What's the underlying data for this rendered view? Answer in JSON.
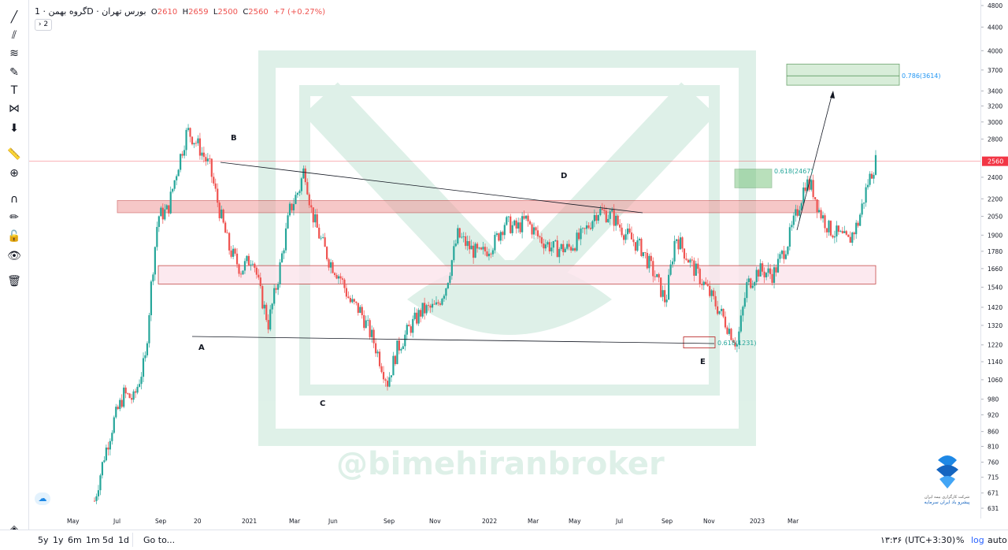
{
  "legend": {
    "symbol": "گروه بهمن · 1D · بورس تهران",
    "open_label": "O",
    "open": "2610",
    "high_label": "H",
    "high": "2659",
    "low_label": "L",
    "low": "2500",
    "close_label": "C",
    "close": "2560",
    "change": "+7 (+0.27%)",
    "collapse_label": "2"
  },
  "toolbar": {
    "tools": [
      "crosshair-icon",
      "trendline-icon",
      "fib-icon",
      "brush-icon",
      "text-icon",
      "pattern-icon",
      "prediction-icon",
      "arrow-down-icon",
      "ruler-icon",
      "zoom-in-icon",
      "magnet-icon",
      "lock-draw-icon",
      "unlock-icon",
      "eye-icon",
      "trash-icon",
      "layers-icon"
    ]
  },
  "bottom_bar": {
    "ranges": [
      "5y",
      "1y",
      "6m",
      "1m",
      "5d",
      "1d"
    ],
    "goto": "Go to...",
    "clock": "۱۳:۳۶ (UTC+3:30)",
    "percent": "%",
    "log": "log",
    "auto": "auto"
  },
  "watermark": "@bimehiranbroker",
  "broker_logo_text": [
    "شرکت کارگزاری بیمه ایران",
    "پیشرو باد ایران سرمایه"
  ],
  "colors": {
    "up": "#26a69a",
    "down": "#ef5350",
    "resistance": "#e57373",
    "support_zone": "#66bb6a",
    "price_line": "#f23645",
    "fib_label": "#2196f3"
  },
  "chart_data": {
    "type": "candlestick",
    "yscale": "log",
    "ylim": [
      631,
      4800
    ],
    "y_ticks": [
      4800,
      4400,
      4000,
      3700,
      3400,
      3200,
      3000,
      2800,
      2560,
      2400,
      2200,
      2050,
      1900,
      1780,
      1660,
      1540,
      1420,
      1320,
      1220,
      1140,
      1060,
      980,
      920,
      860,
      810,
      760,
      715,
      671,
      631
    ],
    "x_ticks": [
      "May",
      "Jul",
      "Sep",
      "20",
      "2021",
      "Mar",
      "Jun",
      "Sep",
      "Nov",
      "2022",
      "Mar",
      "May",
      "Jul",
      "Sep",
      "Nov",
      "2023",
      "Mar"
    ],
    "last_price": "2560",
    "wave_labels": [
      "A",
      "B",
      "C",
      "D",
      "E"
    ],
    "fib_labels": [
      "0.618(2467)",
      "0.618(1231)",
      "0.786(3614)"
    ],
    "path_points": [
      {
        "d": 0,
        "p": 650
      },
      {
        "d": 10,
        "p": 780
      },
      {
        "d": 20,
        "p": 900
      },
      {
        "d": 30,
        "p": 1000
      },
      {
        "d": 40,
        "p": 980
      },
      {
        "d": 52,
        "p": 1150
      },
      {
        "d": 58,
        "p": 1550
      },
      {
        "d": 65,
        "p": 2050
      },
      {
        "d": 75,
        "p": 2100
      },
      {
        "d": 85,
        "p": 2500
      },
      {
        "d": 95,
        "p": 2900
      },
      {
        "d": 105,
        "p": 2750
      },
      {
        "d": 118,
        "p": 2500
      },
      {
        "d": 128,
        "p": 2100
      },
      {
        "d": 138,
        "p": 1800
      },
      {
        "d": 150,
        "p": 1650
      },
      {
        "d": 162,
        "p": 1750
      },
      {
        "d": 170,
        "p": 1500
      },
      {
        "d": 178,
        "p": 1330
      },
      {
        "d": 188,
        "p": 1600
      },
      {
        "d": 200,
        "p": 2100
      },
      {
        "d": 210,
        "p": 2300
      },
      {
        "d": 215,
        "p": 2500
      },
      {
        "d": 222,
        "p": 2100
      },
      {
        "d": 230,
        "p": 1900
      },
      {
        "d": 240,
        "p": 1720
      },
      {
        "d": 252,
        "p": 1600
      },
      {
        "d": 262,
        "p": 1450
      },
      {
        "d": 272,
        "p": 1400
      },
      {
        "d": 285,
        "p": 1250
      },
      {
        "d": 300,
        "p": 1050
      },
      {
        "d": 310,
        "p": 1200
      },
      {
        "d": 322,
        "p": 1300
      },
      {
        "d": 335,
        "p": 1400
      },
      {
        "d": 350,
        "p": 1420
      },
      {
        "d": 360,
        "p": 1550
      },
      {
        "d": 372,
        "p": 1900
      },
      {
        "d": 385,
        "p": 1800
      },
      {
        "d": 395,
        "p": 1750
      },
      {
        "d": 410,
        "p": 1850
      },
      {
        "d": 420,
        "p": 2000
      },
      {
        "d": 432,
        "p": 1950
      },
      {
        "d": 442,
        "p": 2020
      },
      {
        "d": 455,
        "p": 1880
      },
      {
        "d": 470,
        "p": 1800
      },
      {
        "d": 485,
        "p": 1800
      },
      {
        "d": 500,
        "p": 1900
      },
      {
        "d": 515,
        "p": 2100
      },
      {
        "d": 530,
        "p": 2050
      },
      {
        "d": 545,
        "p": 1900
      },
      {
        "d": 560,
        "p": 1800
      },
      {
        "d": 575,
        "p": 1600
      },
      {
        "d": 585,
        "p": 1450
      },
      {
        "d": 595,
        "p": 1900
      },
      {
        "d": 610,
        "p": 1700
      },
      {
        "d": 625,
        "p": 1550
      },
      {
        "d": 640,
        "p": 1400
      },
      {
        "d": 650,
        "p": 1300
      },
      {
        "d": 658,
        "p": 1220
      },
      {
        "d": 668,
        "p": 1550
      },
      {
        "d": 680,
        "p": 1650
      },
      {
        "d": 695,
        "p": 1620
      },
      {
        "d": 710,
        "p": 1850
      },
      {
        "d": 720,
        "p": 2100
      },
      {
        "d": 728,
        "p": 2350
      },
      {
        "d": 735,
        "p": 2300
      },
      {
        "d": 742,
        "p": 2100
      },
      {
        "d": 752,
        "p": 1950
      },
      {
        "d": 762,
        "p": 1900
      },
      {
        "d": 772,
        "p": 1850
      },
      {
        "d": 782,
        "p": 2000
      },
      {
        "d": 792,
        "p": 2350
      },
      {
        "d": 800,
        "p": 2560
      }
    ]
  }
}
